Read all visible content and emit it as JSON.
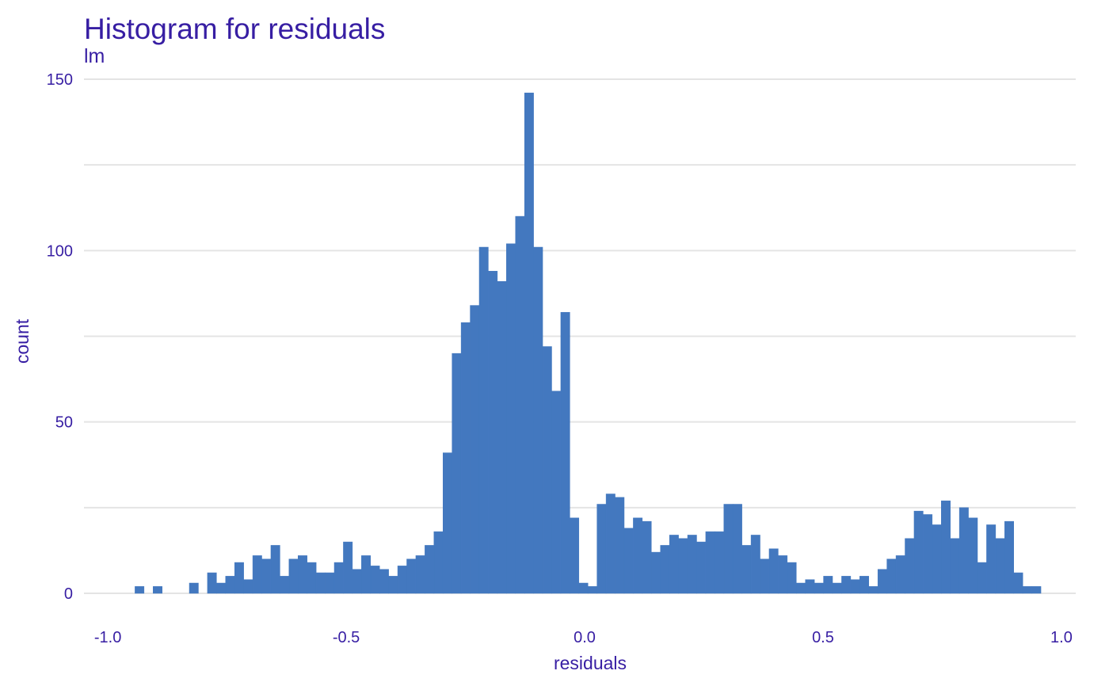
{
  "chart_data": {
    "type": "bar",
    "title": "Histogram for residuals",
    "subtitle": "lm",
    "xlabel": "residuals",
    "ylabel": "count",
    "xlim": [
      -1.05,
      1.03
    ],
    "ylim": [
      0,
      150
    ],
    "x_ticks": [
      "-1.0",
      "-0.5",
      "0.0",
      "0.5",
      "1.0"
    ],
    "x_tick_values": [
      -1.0,
      -0.5,
      0.0,
      0.5,
      1.0
    ],
    "y_ticks": [
      "0",
      "50",
      "100",
      "150"
    ],
    "y_tick_values": [
      0,
      50,
      100,
      150
    ],
    "y_minor_ticks": [
      25,
      75,
      125
    ],
    "grid": true,
    "legend": "none",
    "bar_color": "#4378bf",
    "text_color": "#371ea3",
    "bin_start": -1.0,
    "bin_width": 0.019,
    "counts": [
      0,
      0,
      0,
      2,
      0,
      2,
      0,
      0,
      0,
      3,
      0,
      6,
      3,
      5,
      9,
      4,
      11,
      10,
      14,
      5,
      10,
      11,
      9,
      6,
      6,
      9,
      15,
      7,
      11,
      8,
      7,
      5,
      8,
      10,
      11,
      14,
      18,
      41,
      70,
      79,
      84,
      101,
      94,
      91,
      102,
      110,
      146,
      101,
      72,
      59,
      82,
      22,
      3,
      2,
      26,
      29,
      28,
      19,
      22,
      21,
      12,
      14,
      17,
      16,
      17,
      15,
      18,
      18,
      26,
      26,
      14,
      17,
      10,
      13,
      11,
      9,
      3,
      4,
      3,
      5,
      3,
      5,
      4,
      5,
      2,
      7,
      10,
      11,
      16,
      24,
      23,
      20,
      27,
      16,
      25,
      22,
      9,
      20,
      16,
      21,
      6,
      2,
      2
    ]
  }
}
